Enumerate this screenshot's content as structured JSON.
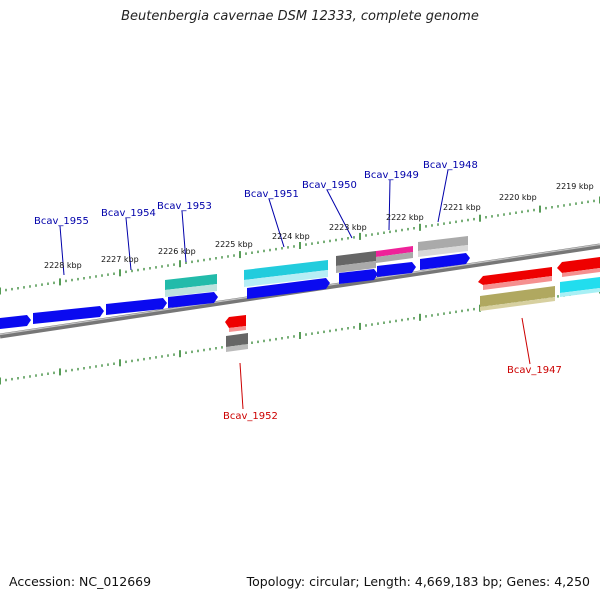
{
  "title": "Beutenbergia cavernae DSM 12333, complete genome",
  "footer": {
    "accession": "Accession: NC_012669",
    "summary": "Topology: circular; Length: 4,669,183 bp; Genes: 4,250"
  },
  "scale_labels": [
    "2228 kbp",
    "2227 kbp",
    "2226 kbp",
    "2225 kbp",
    "2224 kbp",
    "2223 kbp",
    "2222 kbp",
    "2221 kbp",
    "2220 kbp",
    "2219 kbp"
  ],
  "gene_labels": {
    "forward": [
      "Bcav_1955",
      "Bcav_1954",
      "Bcav_1953",
      "Bcav_1951",
      "Bcav_1950",
      "Bcav_1949",
      "Bcav_1948"
    ],
    "reverse": [
      "Bcav_1952",
      "Bcav_1947"
    ]
  },
  "colors": {
    "forward_label": "#0000aa",
    "reverse_label": "#cc0000",
    "backbone": "#8a8a8a",
    "tick": "#1f7a1f",
    "blue_gene": "#0a0af0",
    "red_gene": "#ee0000",
    "cyan_gene": "#22ccdd",
    "teal_gene": "#22bbaa",
    "gray_gene": "#777777",
    "lightgray_gene": "#bbbbbb",
    "magenta_gene": "#ee2299",
    "olive_gene": "#bbb066"
  }
}
